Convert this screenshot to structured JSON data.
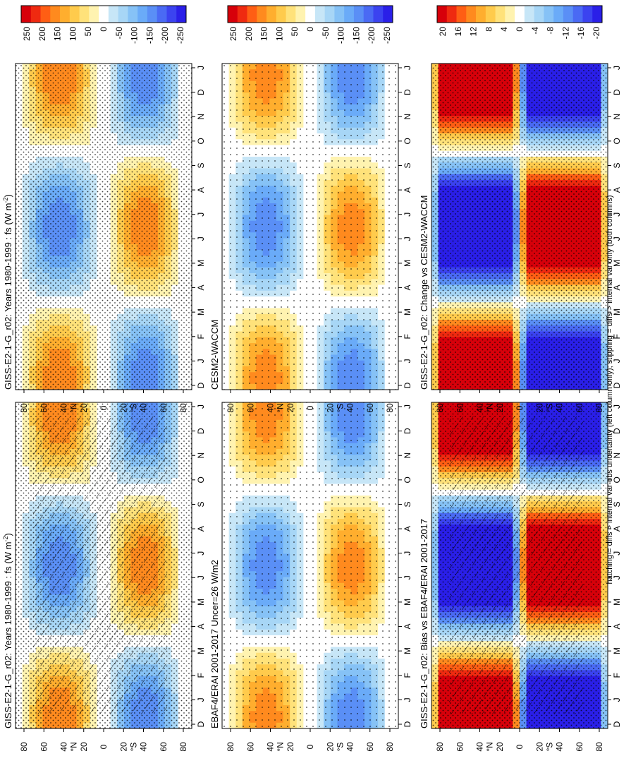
{
  "figure": {
    "caption": "hatching = diffs > internal var-obs uncertainty (left column only); stippling = diffs > internal var only (both columns)"
  },
  "palette": {
    "diverging": [
      "#2a1fe8",
      "#3b43f0",
      "#4a6af4",
      "#5a8ff6",
      "#6aabf8",
      "#86c2f6",
      "#a7d6f6",
      "#c7e6f7",
      "#ffffff",
      "#fff3b0",
      "#ffe27a",
      "#ffcb4c",
      "#ffae2e",
      "#ff8a1e",
      "#ff5e14",
      "#ef2a10",
      "#d7000a"
    ],
    "negative": "#5aa6f0",
    "positive": "#ffc43a",
    "strong_negative": "#2424d8",
    "strong_positive": "#e0140e"
  },
  "chart_data": [
    {
      "panel": "top-left",
      "type": "heatmap",
      "title": "GISS-E2-1-G_r02: Years 1980-1999 : fs (W m",
      "title_sup": "-2",
      "title_end": ")",
      "x_ticks": [
        "D",
        "J",
        "F",
        "M",
        "A",
        "M",
        "J",
        "J",
        "A",
        "S",
        "O",
        "N",
        "D",
        "J"
      ],
      "y_ticks": [
        "80",
        "60",
        "40",
        "20",
        "0",
        "20",
        "40",
        "60",
        "80"
      ],
      "y_label_n": "°N",
      "y_label_s": "°S",
      "colorbar_ticks": [
        "250",
        "200",
        "150",
        "100",
        "50",
        "0",
        "-50",
        "-100",
        "-150",
        "-200",
        "-250"
      ],
      "peak_positive": 180,
      "peak_negative": -170,
      "stippling": "dense",
      "hatching": true
    },
    {
      "panel": "top-right",
      "type": "heatmap",
      "title": "GISS-E2-1-G_r02: Years 1980-1999 : fs (W m",
      "title_sup": "-2",
      "title_end": ")",
      "x_ticks": [
        "D",
        "J",
        "F",
        "M",
        "A",
        "M",
        "J",
        "J",
        "A",
        "S",
        "O",
        "N",
        "D",
        "J"
      ],
      "y_ticks": [
        "80",
        "60",
        "40",
        "20",
        "0",
        "20",
        "40",
        "60",
        "80"
      ],
      "y_label_n": "°N",
      "y_label_s": "°S",
      "colorbar_ticks": [
        "250",
        "200",
        "150",
        "100",
        "50",
        "0",
        "-50",
        "-100",
        "-150",
        "-200",
        "-250"
      ],
      "peak_positive": 180,
      "peak_negative": -170,
      "stippling": "dense",
      "hatching": false
    },
    {
      "panel": "middle-left",
      "type": "heatmap",
      "title": "EBAF4/ERAI 2001-2017 Uncer=26 W/m2",
      "x_ticks": [
        "D",
        "J",
        "F",
        "M",
        "A",
        "M",
        "J",
        "J",
        "A",
        "S",
        "O",
        "N",
        "D",
        "J"
      ],
      "y_ticks": [
        "80",
        "60",
        "40",
        "20",
        "0",
        "20",
        "40",
        "60",
        "80"
      ],
      "y_label_n": "°N",
      "y_label_s": "°S",
      "colorbar_ticks": [
        "250",
        "200",
        "150",
        "100",
        "50",
        "0",
        "-50",
        "-100",
        "-150",
        "-200",
        "-250"
      ],
      "peak_positive": 175,
      "peak_negative": -165,
      "stippling": "sparse",
      "hatching": false
    },
    {
      "panel": "middle-right",
      "type": "heatmap",
      "title": "CESM2-WACCM",
      "x_ticks": [
        "D",
        "J",
        "F",
        "M",
        "A",
        "M",
        "J",
        "J",
        "A",
        "S",
        "O",
        "N",
        "D",
        "J"
      ],
      "y_ticks": [
        "80",
        "60",
        "40",
        "20",
        "0",
        "20",
        "40",
        "60",
        "80"
      ],
      "y_label_n": "°N",
      "y_label_s": "°S",
      "colorbar_ticks": [
        "250",
        "200",
        "150",
        "100",
        "50",
        "0",
        "-50",
        "-100",
        "-150",
        "-200",
        "-250"
      ],
      "peak_positive": 175,
      "peak_negative": -165,
      "stippling": "sparse",
      "hatching": false
    },
    {
      "panel": "bottom-left",
      "type": "heatmap",
      "title": "GISS-E2-1-G_r02: Bias vs EBAF4/ERAI 2001-2017",
      "x_ticks": [
        "D",
        "J",
        "F",
        "M",
        "A",
        "M",
        "J",
        "J",
        "A",
        "S",
        "O",
        "N",
        "D",
        "J"
      ],
      "y_ticks": [
        "80",
        "60",
        "40",
        "20",
        "0",
        "20",
        "40",
        "60",
        "80"
      ],
      "y_label_n": "°N",
      "y_label_s": "°S",
      "colorbar_ticks": [
        "20",
        "16",
        "12",
        "8",
        "4",
        "0",
        "-4",
        "-8",
        "-12",
        "-16",
        "-20"
      ],
      "peak_positive": 22,
      "peak_negative": -22,
      "stippling": "dense",
      "hatching": true
    },
    {
      "panel": "bottom-right",
      "type": "heatmap",
      "title": "GISS-E2-1-G_r02: Change vs CESM2-WACCM",
      "x_ticks": [
        "D",
        "J",
        "F",
        "M",
        "A",
        "M",
        "J",
        "J",
        "A",
        "S",
        "O",
        "N",
        "D",
        "J"
      ],
      "y_ticks": [
        "80",
        "60",
        "40",
        "20",
        "0",
        "20",
        "40",
        "60",
        "80"
      ],
      "y_label_n": "°N",
      "y_label_s": "°S",
      "colorbar_ticks": [
        "20",
        "16",
        "12",
        "8",
        "4",
        "0",
        "-4",
        "-8",
        "-12",
        "-16",
        "-20"
      ],
      "peak_positive": 22,
      "peak_negative": -22,
      "stippling": "dense",
      "hatching": false
    }
  ]
}
